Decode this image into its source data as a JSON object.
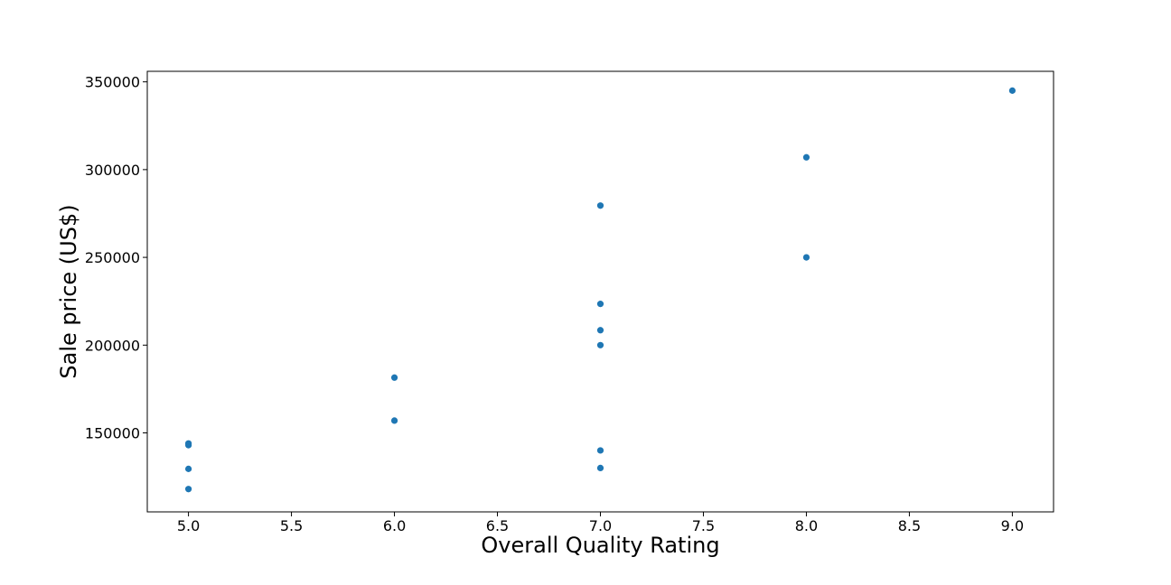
{
  "chart_data": {
    "type": "scatter",
    "title": "",
    "xlabel": "Overall Quality Rating",
    "ylabel": "Sale price (US$)",
    "xlim": [
      4.8,
      9.2
    ],
    "ylim": [
      105000,
      356000
    ],
    "xticks": [
      5.0,
      5.5,
      6.0,
      6.5,
      7.0,
      7.5,
      8.0,
      8.5,
      9.0
    ],
    "xtick_labels": [
      "5.0",
      "5.5",
      "6.0",
      "6.5",
      "7.0",
      "7.5",
      "8.0",
      "8.5",
      "9.0"
    ],
    "yticks": [
      150000,
      200000,
      250000,
      300000,
      350000
    ],
    "ytick_labels": [
      "150000",
      "200000",
      "250000",
      "300000",
      "350000"
    ],
    "grid": false,
    "legend": "none",
    "marker_color": "#1f77b4",
    "series": [
      {
        "x": [
          5,
          5,
          5,
          5,
          6,
          6,
          7,
          7,
          7,
          7,
          7,
          7,
          8,
          8,
          9
        ],
        "y": [
          118000,
          129500,
          143000,
          144000,
          157000,
          181500,
          130000,
          140000,
          200000,
          208500,
          223500,
          279500,
          250000,
          307000,
          345000
        ]
      }
    ]
  }
}
